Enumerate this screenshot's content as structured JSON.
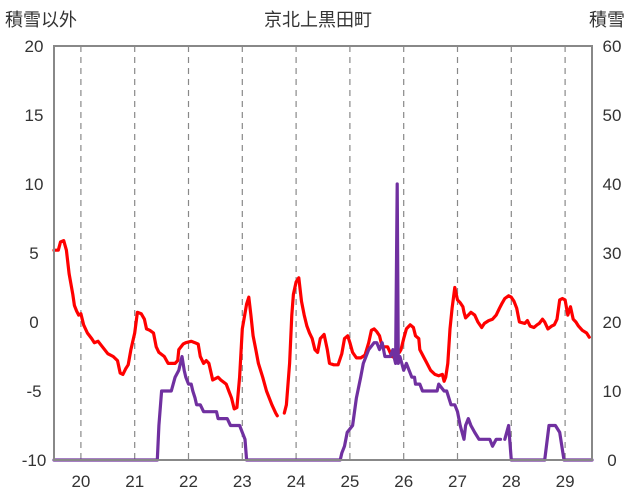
{
  "chart_data": {
    "type": "line",
    "title": "京北上黒田町",
    "left_axis_label": "積雪以外",
    "right_axis_label": "積雪",
    "left_ylim": [
      -10,
      20
    ],
    "left_ticks": [
      "20",
      "15",
      "10",
      "5",
      "0",
      "-5",
      "-10"
    ],
    "right_ylim": [
      0,
      60
    ],
    "right_ticks": [
      "60",
      "50",
      "40",
      "30",
      "20",
      "10",
      "0"
    ],
    "x_range": [
      19.5,
      29.5
    ],
    "x_ticks": [
      "20",
      "21",
      "22",
      "23",
      "24",
      "25",
      "26",
      "27",
      "28",
      "29"
    ],
    "grid": "dashed vertical lines at each day",
    "colors": {
      "temperature": "#ff0000",
      "snow_depth": "#7030a0",
      "frame": "#888888",
      "grid": "#888888"
    },
    "series": [
      {
        "axis": "left",
        "color": "#ff0000",
        "segments": [
          [
            [
              19.5,
              5.2
            ],
            [
              19.58,
              5.2
            ],
            [
              19.62,
              5.8
            ],
            [
              19.68,
              5.9
            ],
            [
              19.73,
              5.2
            ],
            [
              19.78,
              3.5
            ],
            [
              19.85,
              2
            ],
            [
              19.88,
              1.2
            ],
            [
              19.92,
              0.8
            ],
            [
              19.96,
              0.5
            ],
            [
              20.0,
              0.6
            ],
            [
              20.05,
              -0.2
            ],
            [
              20.12,
              -0.8
            ],
            [
              20.2,
              -1.2
            ],
            [
              20.25,
              -1.5
            ],
            [
              20.32,
              -1.4
            ],
            [
              20.4,
              -1.8
            ],
            [
              20.5,
              -2.3
            ],
            [
              20.6,
              -2.5
            ],
            [
              20.68,
              -2.8
            ],
            [
              20.73,
              -3.7
            ],
            [
              20.78,
              -3.8
            ],
            [
              20.83,
              -3.4
            ],
            [
              20.88,
              -3.1
            ],
            [
              20.93,
              -2.0
            ],
            [
              21.0,
              -0.8
            ],
            [
              21.05,
              0.7
            ],
            [
              21.12,
              0.6
            ],
            [
              21.18,
              0.2
            ],
            [
              21.22,
              -0.5
            ],
            [
              21.28,
              -0.6
            ],
            [
              21.35,
              -0.8
            ],
            [
              21.4,
              -1.8
            ],
            [
              21.45,
              -2.2
            ],
            [
              21.55,
              -2.5
            ],
            [
              21.62,
              -3.0
            ],
            [
              21.75,
              -3.0
            ],
            [
              21.8,
              -2.8
            ],
            [
              21.82,
              -2.0
            ],
            [
              21.9,
              -1.6
            ],
            [
              21.95,
              -1.5
            ],
            [
              22.05,
              -1.4
            ],
            [
              22.12,
              -1.5
            ],
            [
              22.18,
              -1.6
            ],
            [
              22.22,
              -2.5
            ],
            [
              22.28,
              -3.0
            ],
            [
              22.33,
              -2.8
            ],
            [
              22.38,
              -3.0
            ],
            [
              22.45,
              -4.2
            ],
            [
              22.55,
              -4.0
            ],
            [
              22.6,
              -4.2
            ],
            [
              22.7,
              -4.5
            ],
            [
              22.75,
              -5.0
            ],
            [
              22.8,
              -5.5
            ],
            [
              22.85,
              -6.3
            ],
            [
              22.9,
              -6.2
            ],
            [
              22.95,
              -4.0
            ],
            [
              23.0,
              -0.5
            ],
            [
              23.08,
              1.3
            ],
            [
              23.12,
              1.8
            ],
            [
              23.16,
              0.5
            ],
            [
              23.2,
              -1.0
            ],
            [
              23.25,
              -2.0
            ],
            [
              23.3,
              -3.0
            ],
            [
              23.38,
              -4.0
            ],
            [
              23.45,
              -5.0
            ],
            [
              23.55,
              -6.0
            ],
            [
              23.62,
              -6.6
            ],
            [
              23.65,
              -6.8
            ]
          ],
          [
            [
              23.78,
              -6.6
            ],
            [
              23.82,
              -6.0
            ],
            [
              23.88,
              -3.0
            ],
            [
              23.92,
              0.5
            ],
            [
              23.95,
              2.0
            ],
            [
              24.0,
              2.9
            ],
            [
              24.05,
              3.2
            ],
            [
              24.1,
              1.5
            ],
            [
              24.15,
              0.5
            ],
            [
              24.2,
              -0.3
            ],
            [
              24.25,
              -0.8
            ],
            [
              24.3,
              -1.2
            ],
            [
              24.35,
              -2.0
            ],
            [
              24.4,
              -2.2
            ],
            [
              24.45,
              -1.2
            ],
            [
              24.52,
              -0.9
            ],
            [
              24.58,
              -2.0
            ],
            [
              24.62,
              -3.0
            ],
            [
              24.7,
              -3.1
            ],
            [
              24.78,
              -3.1
            ],
            [
              24.85,
              -2.3
            ],
            [
              24.9,
              -1.2
            ],
            [
              24.96,
              -1.0
            ],
            [
              25.0,
              -1.5
            ],
            [
              25.05,
              -2.2
            ],
            [
              25.12,
              -2.6
            ],
            [
              25.2,
              -2.6
            ],
            [
              25.28,
              -2.4
            ],
            [
              25.35,
              -1.5
            ],
            [
              25.4,
              -0.6
            ],
            [
              25.45,
              -0.5
            ],
            [
              25.5,
              -0.7
            ],
            [
              25.55,
              -1.0
            ],
            [
              25.6,
              -1.8
            ],
            [
              25.7,
              -1.8
            ],
            [
              25.78,
              -2.5
            ],
            [
              25.85,
              -2.6
            ],
            [
              25.88,
              -2.0
            ],
            [
              25.92,
              -2.2
            ],
            [
              25.95,
              -2.0
            ],
            [
              26.0,
              -1.2
            ],
            [
              26.05,
              -0.5
            ],
            [
              26.12,
              -0.2
            ],
            [
              26.18,
              -0.4
            ],
            [
              26.22,
              -1.0
            ],
            [
              26.28,
              -1.2
            ],
            [
              26.3,
              -2.0
            ],
            [
              26.38,
              -2.6
            ],
            [
              26.42,
              -2.9
            ],
            [
              26.5,
              -3.5
            ],
            [
              26.58,
              -3.8
            ],
            [
              26.65,
              -3.9
            ],
            [
              26.72,
              -3.8
            ],
            [
              26.75,
              -4.3
            ],
            [
              26.78,
              -4.0
            ],
            [
              26.82,
              -3.0
            ],
            [
              26.86,
              -0.5
            ],
            [
              26.9,
              1.0
            ],
            [
              26.95,
              2.5
            ],
            [
              27.0,
              1.6
            ],
            [
              27.05,
              1.4
            ],
            [
              27.1,
              1.1
            ],
            [
              27.12,
              0.7
            ],
            [
              27.15,
              0.3
            ],
            [
              27.2,
              0.5
            ],
            [
              27.25,
              0.7
            ],
            [
              27.32,
              0.5
            ],
            [
              27.38,
              0.0
            ],
            [
              27.45,
              -0.4
            ],
            [
              27.5,
              -0.1
            ],
            [
              27.58,
              0.1
            ],
            [
              27.65,
              0.2
            ],
            [
              27.72,
              0.5
            ],
            [
              27.78,
              1.0
            ],
            [
              27.82,
              1.3
            ],
            [
              27.88,
              1.7
            ],
            [
              27.95,
              1.9
            ],
            [
              28.0,
              1.8
            ],
            [
              28.05,
              1.5
            ],
            [
              28.1,
              1.0
            ],
            [
              28.15,
              0.0
            ],
            [
              28.25,
              -0.1
            ],
            [
              28.3,
              0.1
            ],
            [
              28.35,
              -0.3
            ],
            [
              28.42,
              -0.4
            ],
            [
              28.48,
              -0.2
            ],
            [
              28.52,
              -0.1
            ],
            [
              28.58,
              0.2
            ],
            [
              28.62,
              0.0
            ],
            [
              28.68,
              -0.5
            ],
            [
              28.75,
              -0.3
            ],
            [
              28.8,
              -0.2
            ],
            [
              28.85,
              0.2
            ],
            [
              28.9,
              1.6
            ],
            [
              28.95,
              1.7
            ],
            [
              29.0,
              1.6
            ],
            [
              29.05,
              0.5
            ],
            [
              29.1,
              1.1
            ],
            [
              29.15,
              0.2
            ],
            [
              29.2,
              0.0
            ],
            [
              29.25,
              -0.3
            ],
            [
              29.32,
              -0.6
            ],
            [
              29.4,
              -0.8
            ],
            [
              29.45,
              -1.1
            ]
          ]
        ]
      },
      {
        "axis": "right",
        "color": "#7030a0",
        "segments": [
          [
            [
              19.5,
              0
            ],
            [
              21.42,
              0
            ],
            [
              21.45,
              5
            ],
            [
              21.5,
              10
            ],
            [
              21.68,
              10
            ],
            [
              21.75,
              12
            ],
            [
              21.82,
              13
            ],
            [
              21.85,
              14
            ],
            [
              21.88,
              15
            ],
            [
              21.92,
              13
            ],
            [
              21.95,
              12
            ],
            [
              22.0,
              11
            ],
            [
              22.05,
              11
            ],
            [
              22.08,
              10
            ],
            [
              22.12,
              9
            ],
            [
              22.15,
              8
            ],
            [
              22.22,
              8
            ],
            [
              22.28,
              7
            ],
            [
              22.52,
              7
            ],
            [
              22.55,
              6
            ],
            [
              22.72,
              6
            ],
            [
              22.78,
              5
            ],
            [
              22.95,
              5
            ],
            [
              23.0,
              4
            ],
            [
              23.05,
              3
            ],
            [
              23.08,
              0
            ],
            [
              24.82,
              0
            ],
            [
              24.85,
              1
            ],
            [
              24.9,
              2
            ],
            [
              24.95,
              4
            ],
            [
              25.05,
              5
            ],
            [
              25.12,
              9
            ],
            [
              25.2,
              12
            ],
            [
              25.25,
              14
            ],
            [
              25.3,
              15
            ],
            [
              25.35,
              16
            ],
            [
              25.45,
              17
            ],
            [
              25.5,
              17
            ],
            [
              25.55,
              16
            ],
            [
              25.6,
              17
            ],
            [
              25.65,
              15
            ],
            [
              25.75,
              15
            ],
            [
              25.8,
              16
            ],
            [
              25.82,
              15
            ],
            [
              25.85,
              14
            ],
            [
              25.88,
              40
            ],
            [
              25.9,
              14
            ],
            [
              25.93,
              15
            ],
            [
              26.0,
              13
            ],
            [
              26.05,
              14
            ],
            [
              26.1,
              13
            ],
            [
              26.15,
              12
            ],
            [
              26.2,
              12
            ],
            [
              26.22,
              11
            ],
            [
              26.25,
              11
            ],
            [
              26.3,
              11
            ],
            [
              26.35,
              10
            ],
            [
              26.62,
              10
            ],
            [
              26.65,
              11
            ],
            [
              26.75,
              10
            ],
            [
              26.8,
              10
            ],
            [
              26.88,
              8
            ],
            [
              26.95,
              8
            ],
            [
              27.0,
              7
            ],
            [
              27.05,
              5
            ],
            [
              27.12,
              3
            ],
            [
              27.15,
              5
            ],
            [
              27.2,
              6
            ],
            [
              27.25,
              5
            ],
            [
              27.32,
              4
            ],
            [
              27.4,
              3
            ],
            [
              27.6,
              3
            ],
            [
              27.65,
              2
            ],
            [
              27.72,
              3
            ],
            [
              27.8,
              3
            ]
          ],
          [
            [
              27.88,
              3
            ],
            [
              27.95,
              5
            ],
            [
              28.0,
              0
            ],
            [
              28.62,
              0
            ],
            [
              28.7,
              5
            ],
            [
              28.82,
              5
            ],
            [
              28.9,
              4
            ],
            [
              28.98,
              0
            ],
            [
              29.5,
              0
            ]
          ]
        ]
      }
    ]
  }
}
